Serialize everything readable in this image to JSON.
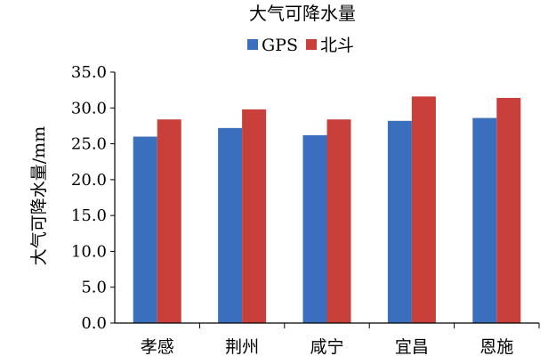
{
  "chart_data": {
    "type": "bar",
    "title": "大气可降水量",
    "xlabel": "",
    "ylabel": "大气可降水量/mm",
    "categories": [
      "孝感",
      "荆州",
      "咸宁",
      "宜昌",
      "恩施"
    ],
    "series": [
      {
        "name": "GPS",
        "color": "#3a6fbd",
        "values": [
          26.0,
          27.2,
          26.2,
          28.2,
          28.6
        ]
      },
      {
        "name": "北斗",
        "color": "#c9403b",
        "values": [
          28.4,
          29.8,
          28.4,
          31.6,
          31.4
        ]
      }
    ],
    "ylim": [
      0,
      35
    ],
    "yticks": [
      "0.0",
      "5.0",
      "10.0",
      "15.0",
      "20.0",
      "25.0",
      "30.0",
      "35.0"
    ],
    "grid": false,
    "legend_position": "top-center"
  }
}
